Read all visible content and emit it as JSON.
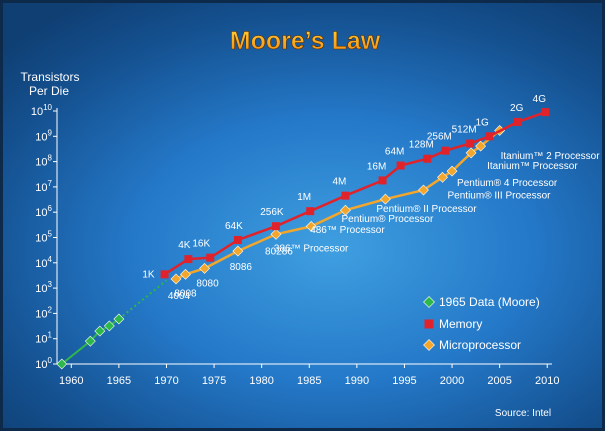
{
  "chart_data": {
    "type": "line",
    "title": "Moore’s Law",
    "ylabel": [
      "Transistors",
      "Per Die"
    ],
    "xlabel": "",
    "source": "Source: Intel",
    "yscale": "log",
    "xlim": [
      1958.5,
      2010.5
    ],
    "ylim": [
      1,
      10000000000
    ],
    "xticks": [
      1960,
      1965,
      1970,
      1975,
      1980,
      1985,
      1990,
      1995,
      2000,
      2005,
      2010
    ],
    "yticks": [
      {
        "base": "10",
        "exp": "0",
        "value": 1
      },
      {
        "base": "10",
        "exp": "1",
        "value": 10
      },
      {
        "base": "10",
        "exp": "2",
        "value": 100
      },
      {
        "base": "10",
        "exp": "3",
        "value": 1000
      },
      {
        "base": "10",
        "exp": "4",
        "value": 10000
      },
      {
        "base": "10",
        "exp": "5",
        "value": 100000
      },
      {
        "base": "10",
        "exp": "6",
        "value": 1000000
      },
      {
        "base": "10",
        "exp": "7",
        "value": 10000000
      },
      {
        "base": "10",
        "exp": "8",
        "value": 100000000
      },
      {
        "base": "10",
        "exp": "9",
        "value": 1000000000
      },
      {
        "base": "10",
        "exp": "10",
        "value": 10000000000
      }
    ],
    "legend_position": "bottom-right",
    "series": [
      {
        "name": "1965 Data (Moore)",
        "color": "#2eb84a",
        "marker": "diamond",
        "points": [
          [
            1959,
            1
          ],
          [
            1962,
            8
          ],
          [
            1963,
            20
          ],
          [
            1964,
            32
          ],
          [
            1965,
            60
          ]
        ],
        "extrapolation": [
          [
            1965,
            60
          ],
          [
            1970,
            2000
          ]
        ]
      },
      {
        "name": "Memory",
        "color": "#e0232b",
        "marker": "square",
        "points": [
          {
            "x": 1969.8,
            "y": 3500,
            "label": "1K"
          },
          {
            "x": 1972.3,
            "y": 14000,
            "label": "4K"
          },
          {
            "x": 1974.6,
            "y": 16000,
            "label": "16K"
          },
          {
            "x": 1977.5,
            "y": 80000,
            "label": "64K"
          },
          {
            "x": 1981.5,
            "y": 280000,
            "label": "256K"
          },
          {
            "x": 1985.1,
            "y": 1100000,
            "label": "1M"
          },
          {
            "x": 1988.8,
            "y": 4500000,
            "label": "4M"
          },
          {
            "x": 1992.7,
            "y": 18000000,
            "label": "16M"
          },
          {
            "x": 1994.6,
            "y": 70000000,
            "label": "64M"
          },
          {
            "x": 1997.4,
            "y": 130000000,
            "label": "128M"
          },
          {
            "x": 1999.3,
            "y": 270000000,
            "label": "256M"
          },
          {
            "x": 2001.9,
            "y": 520000000,
            "label": "512M"
          },
          {
            "x": 2003.9,
            "y": 1000000000,
            "label": "1G"
          },
          {
            "x": 2006.9,
            "y": 3700000000,
            "label": "2G"
          },
          {
            "x": 2009.8,
            "y": 9000000000,
            "label": "4G"
          }
        ]
      },
      {
        "name": "Microprocessor",
        "color": "#f2a72c",
        "marker": "diamond",
        "points": [
          {
            "x": 1971.0,
            "y": 2300,
            "label": "4004"
          },
          {
            "x": 1972.0,
            "y": 3500,
            "label": "8008"
          },
          {
            "x": 1974.0,
            "y": 6000,
            "label": "8080"
          },
          {
            "x": 1977.5,
            "y": 29000,
            "label": "8086"
          },
          {
            "x": 1981.5,
            "y": 134000,
            "label": "80286"
          },
          {
            "x": 1985.2,
            "y": 275000,
            "label": "386™ Processor"
          },
          {
            "x": 1988.8,
            "y": 1200000,
            "label": "486™ Processor"
          },
          {
            "x": 1993.0,
            "y": 3300000,
            "label": "Pentium® Processor"
          },
          {
            "x": 1997.0,
            "y": 7500000,
            "label": "Pentium® II Processor"
          },
          {
            "x": 1999.0,
            "y": 24000000,
            "label": "Pentium® III Processor"
          },
          {
            "x": 2000.0,
            "y": 42000000,
            "label": "Pentium® 4 Processor"
          },
          {
            "x": 2002.0,
            "y": 220000000,
            "label": "Itanium™ Processor"
          },
          {
            "x": 2003.0,
            "y": 410000000,
            "label": "Itanium™ 2 Processor"
          },
          {
            "x": 2005.0,
            "y": 1700000000
          }
        ]
      }
    ]
  }
}
